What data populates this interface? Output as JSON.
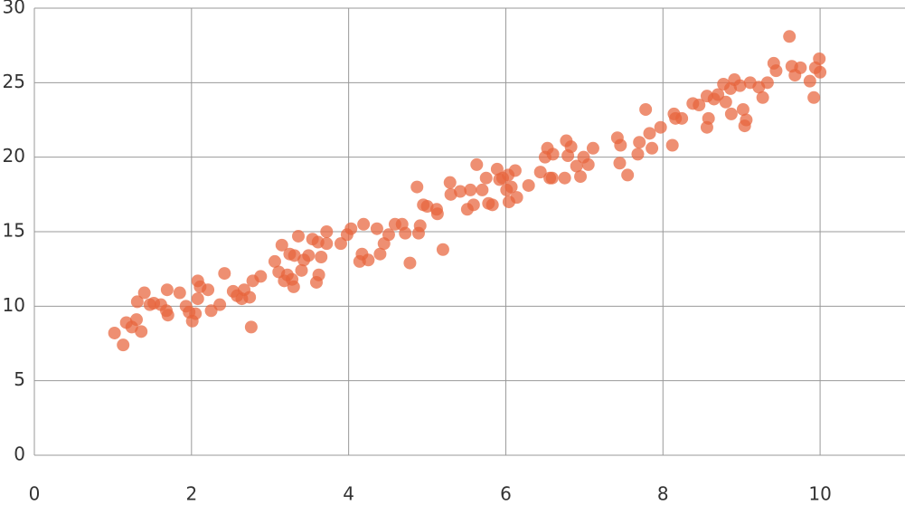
{
  "chart_data": {
    "type": "scatter",
    "color": "#e8643c",
    "grid": true,
    "xlim": [
      0,
      11
    ],
    "ylim": [
      0,
      30
    ],
    "xticks": [
      0,
      2,
      4,
      6,
      8,
      10
    ],
    "yticks": [
      0,
      5,
      10,
      15,
      20,
      25,
      30
    ],
    "x": [
      1.02,
      1.13,
      1.17,
      1.24,
      1.3,
      1.31,
      1.36,
      1.4,
      1.47,
      1.52,
      1.61,
      1.68,
      1.69,
      1.7,
      1.85,
      1.93,
      1.97,
      2.01,
      2.05,
      2.08,
      2.08,
      2.11,
      2.21,
      2.25,
      2.36,
      2.42,
      2.53,
      2.58,
      2.64,
      2.67,
      2.74,
      2.76,
      2.78,
      2.88,
      3.06,
      3.11,
      3.15,
      3.18,
      3.22,
      3.25,
      3.28,
      3.3,
      3.31,
      3.36,
      3.4,
      3.43,
      3.49,
      3.54,
      3.59,
      3.62,
      3.65,
      3.61,
      3.72,
      3.72,
      3.9,
      3.98,
      4.03,
      4.14,
      4.17,
      4.19,
      4.25,
      4.36,
      4.4,
      4.45,
      4.51,
      4.59,
      4.68,
      4.72,
      4.78,
      4.87,
      4.89,
      4.91,
      4.95,
      5.0,
      5.12,
      5.13,
      5.2,
      5.29,
      5.3,
      5.42,
      5.51,
      5.55,
      5.59,
      5.63,
      5.7,
      5.75,
      5.78,
      5.83,
      5.89,
      5.92,
      5.96,
      6.01,
      6.03,
      6.04,
      6.07,
      6.12,
      6.14,
      6.29,
      6.44,
      6.5,
      6.53,
      6.56,
      6.59,
      6.6,
      6.75,
      6.77,
      6.79,
      6.83,
      6.9,
      6.95,
      6.99,
      7.05,
      7.11,
      7.42,
      7.45,
      7.46,
      7.55,
      7.68,
      7.7,
      7.78,
      7.83,
      7.86,
      7.97,
      8.12,
      8.14,
      8.16,
      8.24,
      8.38,
      8.46,
      8.56,
      8.56,
      8.58,
      8.65,
      8.7,
      8.77,
      8.8,
      8.86,
      8.87,
      8.91,
      8.98,
      9.02,
      9.04,
      9.06,
      9.11,
      9.22,
      9.27,
      9.33,
      9.41,
      9.44,
      9.61,
      9.64,
      9.68,
      9.75,
      9.87,
      9.92,
      9.94,
      9.99,
      10.0
    ],
    "values": [
      8.2,
      7.4,
      8.9,
      8.6,
      9.1,
      10.3,
      8.3,
      10.9,
      10.1,
      10.2,
      10.1,
      9.7,
      11.1,
      9.4,
      10.9,
      10.0,
      9.6,
      9.0,
      9.5,
      11.7,
      10.5,
      11.3,
      11.1,
      9.7,
      10.1,
      12.2,
      11.0,
      10.7,
      10.5,
      11.1,
      10.6,
      8.6,
      11.7,
      12.0,
      13.0,
      12.3,
      14.1,
      11.7,
      12.1,
      13.5,
      11.8,
      11.3,
      13.4,
      14.7,
      12.4,
      13.1,
      13.4,
      14.5,
      11.6,
      12.1,
      13.3,
      14.3,
      14.2,
      15.0,
      14.2,
      14.8,
      15.2,
      13.0,
      13.5,
      15.5,
      13.1,
      15.2,
      13.5,
      14.2,
      14.8,
      15.5,
      15.5,
      14.9,
      12.9,
      18.0,
      14.9,
      15.4,
      16.8,
      16.7,
      16.5,
      16.2,
      13.8,
      18.3,
      17.5,
      17.7,
      16.5,
      17.8,
      16.8,
      19.5,
      17.8,
      18.6,
      16.9,
      16.8,
      19.2,
      18.5,
      18.6,
      17.8,
      18.8,
      17.0,
      18.0,
      19.1,
      17.3,
      18.1,
      19.0,
      20.0,
      20.6,
      18.6,
      18.6,
      20.2,
      18.6,
      21.1,
      20.1,
      20.7,
      19.4,
      18.7,
      20.0,
      19.5,
      20.6,
      21.3,
      19.6,
      20.8,
      18.8,
      20.2,
      21.0,
      23.2,
      21.6,
      20.6,
      22.0,
      20.8,
      22.9,
      22.6,
      22.6,
      23.6,
      23.5,
      24.1,
      22.0,
      22.6,
      23.9,
      24.2,
      24.9,
      23.7,
      24.6,
      22.9,
      25.2,
      24.8,
      23.2,
      22.1,
      22.5,
      25.0,
      24.7,
      24.0,
      25.0,
      26.3,
      25.8,
      28.1,
      26.1,
      25.5,
      26.0,
      25.1,
      24.0,
      26.0,
      26.6,
      25.7
    ]
  }
}
